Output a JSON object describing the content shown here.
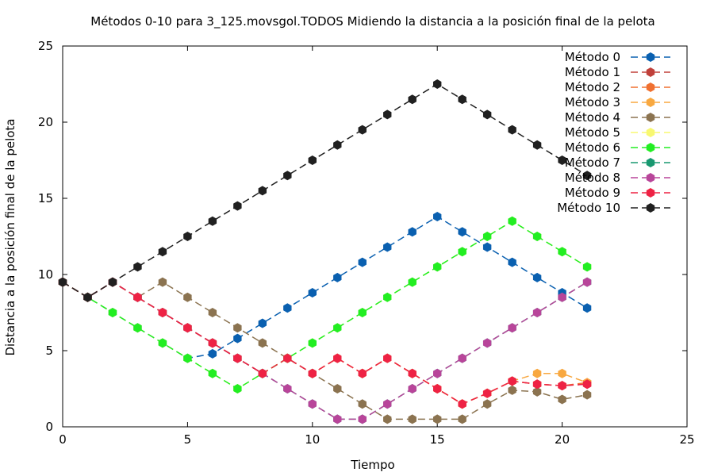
{
  "chart_data": {
    "type": "line",
    "title": "Métodos 0-10 para 3_125.movsgol.TODOS Midiendo la distancia a la posición final de la pelota",
    "xlabel": "Tiempo",
    "ylabel": "Distancia a la posición final de la pelota",
    "xlim": [
      0,
      25
    ],
    "ylim": [
      0,
      25
    ],
    "xticks": [
      0,
      5,
      10,
      15,
      20,
      25
    ],
    "yticks": [
      0,
      5,
      10,
      15,
      20,
      25
    ],
    "grid": false,
    "legend_position": "top-right",
    "x": [
      0,
      1,
      2,
      3,
      4,
      5,
      6,
      7,
      8,
      9,
      10,
      11,
      12,
      13,
      14,
      15,
      16,
      17,
      18,
      19,
      20,
      21
    ],
    "series": [
      {
        "name": "Método 0",
        "color": "#0a60b0",
        "values": [
          9.5,
          8.5,
          7.5,
          6.5,
          5.5,
          4.5,
          4.8,
          5.8,
          6.8,
          7.8,
          8.8,
          9.8,
          10.8,
          11.8,
          12.8,
          13.8,
          12.8,
          11.8,
          10.8,
          9.8,
          8.8,
          7.8
        ]
      },
      {
        "name": "Método 1",
        "color": "#c0403a",
        "values": [
          9.5,
          8.5,
          9.5,
          8.5,
          7.5,
          6.5,
          5.5,
          4.5,
          3.5,
          4.5,
          3.5,
          4.5,
          3.5,
          4.5,
          3.5,
          2.5,
          1.5,
          2.2,
          3.0,
          2.8,
          2.7,
          2.8
        ]
      },
      {
        "name": "Método 2",
        "color": "#f07030",
        "values": [
          9.5,
          8.5,
          9.5,
          8.5,
          7.5,
          6.5,
          5.5,
          4.5,
          3.5,
          4.5,
          3.5,
          4.5,
          3.5,
          4.5,
          3.5,
          2.5,
          1.5,
          2.2,
          3.0,
          2.8,
          2.7,
          2.9
        ]
      },
      {
        "name": "Método 3",
        "color": "#f8a840",
        "values": [
          9.5,
          8.5,
          9.5,
          8.5,
          7.5,
          6.5,
          5.5,
          4.5,
          3.5,
          4.5,
          3.5,
          4.5,
          3.5,
          4.5,
          3.5,
          2.5,
          1.5,
          2.2,
          3.0,
          3.5,
          3.5,
          2.9
        ]
      },
      {
        "name": "Método 4",
        "color": "#8b7350",
        "values": [
          9.5,
          8.5,
          9.5,
          8.5,
          9.5,
          8.5,
          7.5,
          6.5,
          5.5,
          4.5,
          3.5,
          2.5,
          1.5,
          0.5,
          0.5,
          0.5,
          0.5,
          1.5,
          2.4,
          2.3,
          1.8,
          2.1
        ]
      },
      {
        "name": "Método 5",
        "color": "#f8f870",
        "values": [
          9.5,
          8.5,
          7.5,
          6.5,
          5.5,
          4.5,
          3.5,
          2.5,
          3.5,
          4.5,
          5.5,
          6.5,
          7.5,
          8.5,
          9.5,
          10.5,
          11.5,
          12.5,
          13.5,
          12.5,
          11.5,
          10.5
        ]
      },
      {
        "name": "Método 6",
        "color": "#22ee22",
        "values": [
          9.5,
          8.5,
          7.5,
          6.5,
          5.5,
          4.5,
          3.5,
          2.5,
          3.5,
          4.5,
          5.5,
          6.5,
          7.5,
          8.5,
          9.5,
          10.5,
          11.5,
          12.5,
          13.5,
          12.5,
          11.5,
          10.5
        ]
      },
      {
        "name": "Método 7",
        "color": "#189870",
        "values": [
          9.5,
          8.5,
          9.5,
          8.5,
          7.5,
          6.5,
          5.5,
          4.5,
          3.5,
          2.5,
          1.5,
          0.5,
          0.5,
          1.5,
          2.5,
          3.5,
          4.5,
          5.5,
          6.5,
          7.5,
          8.5,
          9.5
        ]
      },
      {
        "name": "Método 8",
        "color": "#b8459a",
        "values": [
          9.5,
          8.5,
          9.5,
          8.5,
          7.5,
          6.5,
          5.5,
          4.5,
          3.5,
          2.5,
          1.5,
          0.5,
          0.5,
          1.5,
          2.5,
          3.5,
          4.5,
          5.5,
          6.5,
          7.5,
          8.5,
          9.5
        ]
      },
      {
        "name": "Método 9",
        "color": "#ee2244",
        "values": [
          9.5,
          8.5,
          9.5,
          8.5,
          7.5,
          6.5,
          5.5,
          4.5,
          3.5,
          4.5,
          3.5,
          4.5,
          3.5,
          4.5,
          3.5,
          2.5,
          1.5,
          2.2,
          3.0,
          2.8,
          2.7,
          2.8
        ]
      },
      {
        "name": "Método 10",
        "color": "#202020",
        "values": [
          9.5,
          8.5,
          9.5,
          10.5,
          11.5,
          12.5,
          13.5,
          14.5,
          15.5,
          16.5,
          17.5,
          18.5,
          19.5,
          20.5,
          21.5,
          22.5,
          21.5,
          20.5,
          19.5,
          18.5,
          17.5,
          16.5
        ]
      }
    ]
  }
}
